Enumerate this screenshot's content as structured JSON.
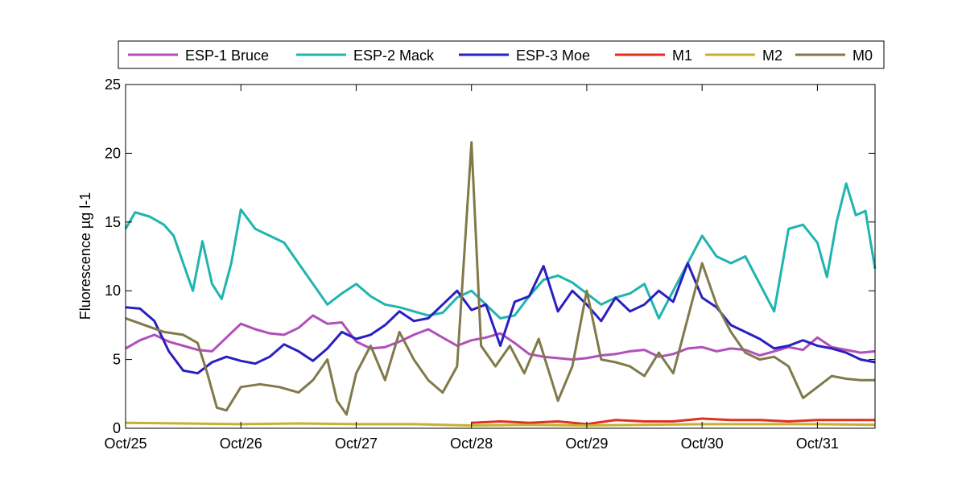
{
  "chart_data": {
    "type": "line",
    "ylabel": "Fluorescence µg l-1",
    "xlabel": "",
    "ylim": [
      0,
      25
    ],
    "xlim": [
      "Oct/25",
      "Oct/31 12:00"
    ],
    "yticks": [
      0,
      5,
      10,
      15,
      20,
      25
    ],
    "xticks": [
      "Oct/25",
      "Oct/26",
      "Oct/27",
      "Oct/28",
      "Oct/29",
      "Oct/30",
      "Oct/31"
    ],
    "grid": false,
    "legend_position": "top",
    "series": [
      {
        "name": "ESP-1 Bruce",
        "color": "#b050b8",
        "points": [
          [
            "Oct/25 00:00",
            5.8
          ],
          [
            "Oct/25 03:00",
            6.4
          ],
          [
            "Oct/25 06:00",
            6.8
          ],
          [
            "Oct/25 09:00",
            6.3
          ],
          [
            "Oct/25 12:00",
            6.0
          ],
          [
            "Oct/25 15:00",
            5.7
          ],
          [
            "Oct/25 18:00",
            5.6
          ],
          [
            "Oct/25 21:00",
            6.6
          ],
          [
            "Oct/26 00:00",
            7.6
          ],
          [
            "Oct/26 03:00",
            7.2
          ],
          [
            "Oct/26 06:00",
            6.9
          ],
          [
            "Oct/26 09:00",
            6.8
          ],
          [
            "Oct/26 12:00",
            7.3
          ],
          [
            "Oct/26 15:00",
            8.2
          ],
          [
            "Oct/26 18:00",
            7.6
          ],
          [
            "Oct/26 21:00",
            7.7
          ],
          [
            "Oct/27 00:00",
            6.3
          ],
          [
            "Oct/27 03:00",
            5.8
          ],
          [
            "Oct/27 06:00",
            5.9
          ],
          [
            "Oct/27 09:00",
            6.3
          ],
          [
            "Oct/27 12:00",
            6.8
          ],
          [
            "Oct/27 15:00",
            7.2
          ],
          [
            "Oct/27 18:00",
            6.6
          ],
          [
            "Oct/27 21:00",
            6.0
          ],
          [
            "Oct/28 00:00",
            6.4
          ],
          [
            "Oct/28 03:00",
            6.6
          ],
          [
            "Oct/28 06:00",
            6.9
          ],
          [
            "Oct/28 09:00",
            6.2
          ],
          [
            "Oct/28 12:00",
            5.4
          ],
          [
            "Oct/28 15:00",
            5.2
          ],
          [
            "Oct/28 18:00",
            5.1
          ],
          [
            "Oct/28 21:00",
            5.0
          ],
          [
            "Oct/29 00:00",
            5.1
          ],
          [
            "Oct/29 03:00",
            5.3
          ],
          [
            "Oct/29 06:00",
            5.4
          ],
          [
            "Oct/29 09:00",
            5.6
          ],
          [
            "Oct/29 12:00",
            5.7
          ],
          [
            "Oct/29 15:00",
            5.2
          ],
          [
            "Oct/29 18:00",
            5.4
          ],
          [
            "Oct/29 21:00",
            5.8
          ],
          [
            "Oct/30 00:00",
            5.9
          ],
          [
            "Oct/30 03:00",
            5.6
          ],
          [
            "Oct/30 06:00",
            5.8
          ],
          [
            "Oct/30 09:00",
            5.7
          ],
          [
            "Oct/30 12:00",
            5.3
          ],
          [
            "Oct/30 15:00",
            5.6
          ],
          [
            "Oct/30 18:00",
            5.9
          ],
          [
            "Oct/30 21:00",
            5.7
          ],
          [
            "Oct/31 00:00",
            6.6
          ],
          [
            "Oct/31 03:00",
            5.9
          ],
          [
            "Oct/31 06:00",
            5.7
          ],
          [
            "Oct/31 09:00",
            5.5
          ],
          [
            "Oct/31 12:00",
            5.6
          ]
        ]
      },
      {
        "name": "ESP-2 Mack",
        "color": "#20b4b0",
        "points": [
          [
            "Oct/25 00:00",
            14.5
          ],
          [
            "Oct/25 02:00",
            15.7
          ],
          [
            "Oct/25 05:00",
            15.4
          ],
          [
            "Oct/25 08:00",
            14.8
          ],
          [
            "Oct/25 10:00",
            14.0
          ],
          [
            "Oct/25 12:00",
            12.0
          ],
          [
            "Oct/25 14:00",
            10.0
          ],
          [
            "Oct/25 16:00",
            13.6
          ],
          [
            "Oct/25 18:00",
            10.5
          ],
          [
            "Oct/25 20:00",
            9.4
          ],
          [
            "Oct/25 22:00",
            12.0
          ],
          [
            "Oct/26 00:00",
            15.9
          ],
          [
            "Oct/26 03:00",
            14.5
          ],
          [
            "Oct/26 06:00",
            14.0
          ],
          [
            "Oct/26 09:00",
            13.5
          ],
          [
            "Oct/26 12:00",
            12.0
          ],
          [
            "Oct/26 15:00",
            10.5
          ],
          [
            "Oct/26 18:00",
            9.0
          ],
          [
            "Oct/26 21:00",
            9.8
          ],
          [
            "Oct/27 00:00",
            10.5
          ],
          [
            "Oct/27 03:00",
            9.6
          ],
          [
            "Oct/27 06:00",
            9.0
          ],
          [
            "Oct/27 09:00",
            8.8
          ],
          [
            "Oct/27 12:00",
            8.5
          ],
          [
            "Oct/27 15:00",
            8.2
          ],
          [
            "Oct/27 18:00",
            8.4
          ],
          [
            "Oct/27 21:00",
            9.5
          ],
          [
            "Oct/28 00:00",
            10.0
          ],
          [
            "Oct/28 03:00",
            9.0
          ],
          [
            "Oct/28 06:00",
            8.0
          ],
          [
            "Oct/28 09:00",
            8.2
          ],
          [
            "Oct/28 12:00",
            9.6
          ],
          [
            "Oct/28 15:00",
            10.8
          ],
          [
            "Oct/28 18:00",
            11.1
          ],
          [
            "Oct/28 21:00",
            10.6
          ],
          [
            "Oct/29 00:00",
            9.8
          ],
          [
            "Oct/29 03:00",
            9.0
          ],
          [
            "Oct/29 06:00",
            9.5
          ],
          [
            "Oct/29 09:00",
            9.8
          ],
          [
            "Oct/29 12:00",
            10.5
          ],
          [
            "Oct/29 15:00",
            8.0
          ],
          [
            "Oct/29 18:00",
            10.0
          ],
          [
            "Oct/29 21:00",
            12.0
          ],
          [
            "Oct/30 00:00",
            14.0
          ],
          [
            "Oct/30 03:00",
            12.5
          ],
          [
            "Oct/30 06:00",
            12.0
          ],
          [
            "Oct/30 09:00",
            12.5
          ],
          [
            "Oct/30 12:00",
            10.5
          ],
          [
            "Oct/30 15:00",
            8.5
          ],
          [
            "Oct/30 18:00",
            14.5
          ],
          [
            "Oct/30 21:00",
            14.8
          ],
          [
            "Oct/31 00:00",
            13.5
          ],
          [
            "Oct/31 02:00",
            11.0
          ],
          [
            "Oct/31 04:00",
            15.0
          ],
          [
            "Oct/31 06:00",
            17.8
          ],
          [
            "Oct/31 08:00",
            15.5
          ],
          [
            "Oct/31 10:00",
            15.8
          ],
          [
            "Oct/31 12:00",
            11.6
          ]
        ]
      },
      {
        "name": "ESP-3 Moe",
        "color": "#2a1fc0",
        "points": [
          [
            "Oct/25 00:00",
            8.8
          ],
          [
            "Oct/25 03:00",
            8.7
          ],
          [
            "Oct/25 06:00",
            7.8
          ],
          [
            "Oct/25 09:00",
            5.6
          ],
          [
            "Oct/25 12:00",
            4.2
          ],
          [
            "Oct/25 15:00",
            4.0
          ],
          [
            "Oct/25 18:00",
            4.8
          ],
          [
            "Oct/25 21:00",
            5.2
          ],
          [
            "Oct/26 00:00",
            4.9
          ],
          [
            "Oct/26 03:00",
            4.7
          ],
          [
            "Oct/26 06:00",
            5.2
          ],
          [
            "Oct/26 09:00",
            6.1
          ],
          [
            "Oct/26 12:00",
            5.6
          ],
          [
            "Oct/26 15:00",
            4.9
          ],
          [
            "Oct/26 18:00",
            5.8
          ],
          [
            "Oct/26 21:00",
            7.0
          ],
          [
            "Oct/27 00:00",
            6.5
          ],
          [
            "Oct/27 03:00",
            6.8
          ],
          [
            "Oct/27 06:00",
            7.5
          ],
          [
            "Oct/27 09:00",
            8.5
          ],
          [
            "Oct/27 12:00",
            7.8
          ],
          [
            "Oct/27 15:00",
            8.0
          ],
          [
            "Oct/27 18:00",
            9.0
          ],
          [
            "Oct/27 21:00",
            10.0
          ],
          [
            "Oct/28 00:00",
            8.6
          ],
          [
            "Oct/28 03:00",
            9.0
          ],
          [
            "Oct/28 06:00",
            6.0
          ],
          [
            "Oct/28 09:00",
            9.2
          ],
          [
            "Oct/28 12:00",
            9.6
          ],
          [
            "Oct/28 15:00",
            11.8
          ],
          [
            "Oct/28 18:00",
            8.5
          ],
          [
            "Oct/28 21:00",
            10.0
          ],
          [
            "Oct/29 00:00",
            9.0
          ],
          [
            "Oct/29 03:00",
            7.8
          ],
          [
            "Oct/29 06:00",
            9.5
          ],
          [
            "Oct/29 09:00",
            8.5
          ],
          [
            "Oct/29 12:00",
            9.0
          ],
          [
            "Oct/29 15:00",
            10.0
          ],
          [
            "Oct/29 18:00",
            9.2
          ],
          [
            "Oct/29 21:00",
            12.0
          ],
          [
            "Oct/30 00:00",
            9.5
          ],
          [
            "Oct/30 03:00",
            8.8
          ],
          [
            "Oct/30 06:00",
            7.5
          ],
          [
            "Oct/30 09:00",
            7.0
          ],
          [
            "Oct/30 12:00",
            6.5
          ],
          [
            "Oct/30 15:00",
            5.8
          ],
          [
            "Oct/30 18:00",
            6.0
          ],
          [
            "Oct/30 21:00",
            6.4
          ],
          [
            "Oct/31 00:00",
            6.0
          ],
          [
            "Oct/31 03:00",
            5.8
          ],
          [
            "Oct/31 06:00",
            5.5
          ],
          [
            "Oct/31 09:00",
            5.0
          ],
          [
            "Oct/31 12:00",
            4.8
          ]
        ]
      },
      {
        "name": "M1",
        "color": "#e0301e",
        "points": [
          [
            "Oct/28 00:00",
            0.4
          ],
          [
            "Oct/28 06:00",
            0.5
          ],
          [
            "Oct/28 12:00",
            0.4
          ],
          [
            "Oct/28 18:00",
            0.5
          ],
          [
            "Oct/29 00:00",
            0.3
          ],
          [
            "Oct/29 06:00",
            0.6
          ],
          [
            "Oct/29 12:00",
            0.5
          ],
          [
            "Oct/29 18:00",
            0.5
          ],
          [
            "Oct/30 00:00",
            0.7
          ],
          [
            "Oct/30 06:00",
            0.6
          ],
          [
            "Oct/30 12:00",
            0.6
          ],
          [
            "Oct/30 18:00",
            0.5
          ],
          [
            "Oct/31 00:00",
            0.6
          ],
          [
            "Oct/31 06:00",
            0.6
          ],
          [
            "Oct/31 12:00",
            0.6
          ]
        ]
      },
      {
        "name": "M2",
        "color": "#c8b030",
        "points": [
          [
            "Oct/25 00:00",
            0.4
          ],
          [
            "Oct/25 12:00",
            0.35
          ],
          [
            "Oct/26 00:00",
            0.3
          ],
          [
            "Oct/26 12:00",
            0.35
          ],
          [
            "Oct/27 00:00",
            0.3
          ],
          [
            "Oct/27 12:00",
            0.3
          ],
          [
            "Oct/28 00:00",
            0.2
          ],
          [
            "Oct/28 12:00",
            0.25
          ],
          [
            "Oct/29 00:00",
            0.2
          ],
          [
            "Oct/29 12:00",
            0.25
          ],
          [
            "Oct/30 00:00",
            0.3
          ],
          [
            "Oct/30 12:00",
            0.3
          ],
          [
            "Oct/31 00:00",
            0.3
          ],
          [
            "Oct/31 12:00",
            0.25
          ]
        ]
      },
      {
        "name": "M0",
        "color": "#807a4a",
        "points": [
          [
            "Oct/25 00:00",
            8.0
          ],
          [
            "Oct/25 04:00",
            7.5
          ],
          [
            "Oct/25 08:00",
            7.0
          ],
          [
            "Oct/25 12:00",
            6.8
          ],
          [
            "Oct/25 15:00",
            6.2
          ],
          [
            "Oct/25 17:00",
            4.0
          ],
          [
            "Oct/25 19:00",
            1.5
          ],
          [
            "Oct/25 21:00",
            1.3
          ],
          [
            "Oct/26 00:00",
            3.0
          ],
          [
            "Oct/26 04:00",
            3.2
          ],
          [
            "Oct/26 08:00",
            3.0
          ],
          [
            "Oct/26 12:00",
            2.6
          ],
          [
            "Oct/26 15:00",
            3.5
          ],
          [
            "Oct/26 18:00",
            5.0
          ],
          [
            "Oct/26 20:00",
            2.0
          ],
          [
            "Oct/26 22:00",
            1.0
          ],
          [
            "Oct/27 00:00",
            4.0
          ],
          [
            "Oct/27 03:00",
            6.0
          ],
          [
            "Oct/27 06:00",
            3.5
          ],
          [
            "Oct/27 09:00",
            7.0
          ],
          [
            "Oct/27 12:00",
            5.0
          ],
          [
            "Oct/27 15:00",
            3.5
          ],
          [
            "Oct/27 18:00",
            2.6
          ],
          [
            "Oct/27 21:00",
            4.5
          ],
          [
            "Oct/28 00:00",
            20.8
          ],
          [
            "Oct/28 02:00",
            6.0
          ],
          [
            "Oct/28 05:00",
            4.5
          ],
          [
            "Oct/28 08:00",
            6.0
          ],
          [
            "Oct/28 11:00",
            4.0
          ],
          [
            "Oct/28 14:00",
            6.5
          ],
          [
            "Oct/28 18:00",
            2.0
          ],
          [
            "Oct/28 21:00",
            4.5
          ],
          [
            "Oct/29 00:00",
            10.0
          ],
          [
            "Oct/29 03:00",
            5.0
          ],
          [
            "Oct/29 06:00",
            4.8
          ],
          [
            "Oct/29 09:00",
            4.5
          ],
          [
            "Oct/29 12:00",
            3.8
          ],
          [
            "Oct/29 15:00",
            5.5
          ],
          [
            "Oct/29 18:00",
            4.0
          ],
          [
            "Oct/29 21:00",
            8.0
          ],
          [
            "Oct/30 00:00",
            12.0
          ],
          [
            "Oct/30 03:00",
            9.0
          ],
          [
            "Oct/30 06:00",
            7.0
          ],
          [
            "Oct/30 09:00",
            5.5
          ],
          [
            "Oct/30 12:00",
            5.0
          ],
          [
            "Oct/30 15:00",
            5.2
          ],
          [
            "Oct/30 18:00",
            4.5
          ],
          [
            "Oct/30 21:00",
            2.2
          ],
          [
            "Oct/31 00:00",
            3.0
          ],
          [
            "Oct/31 03:00",
            3.8
          ],
          [
            "Oct/31 06:00",
            3.6
          ],
          [
            "Oct/31 09:00",
            3.5
          ],
          [
            "Oct/31 12:00",
            3.5
          ]
        ]
      }
    ]
  }
}
